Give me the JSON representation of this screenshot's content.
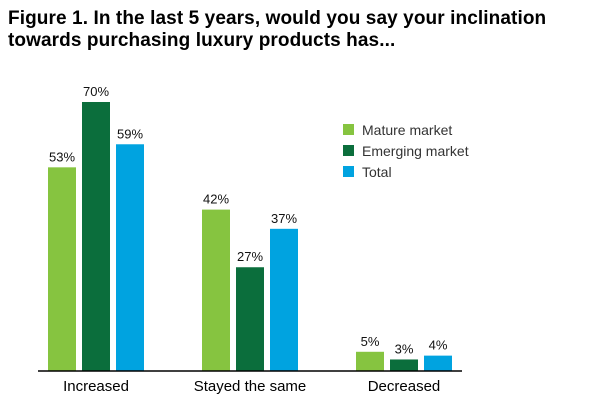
{
  "chart_data": {
    "type": "bar",
    "title": "Figure 1. In the last 5 years, would you say your inclination towards purchasing luxury products has...",
    "categories": [
      "Increased",
      "Stayed the same",
      "Decreased"
    ],
    "series": [
      {
        "name": "Mature market",
        "values": [
          53,
          42,
          5
        ],
        "color": "#86c440"
      },
      {
        "name": "Emerging market",
        "values": [
          70,
          27,
          3
        ],
        "color": "#0b6e3c"
      },
      {
        "name": "Total",
        "values": [
          59,
          37,
          4
        ],
        "color": "#00a3e0"
      }
    ],
    "value_suffix": "%",
    "ylim": [
      0,
      70
    ],
    "grid": false,
    "legend_position": "top-right",
    "xlabel": "",
    "ylabel": ""
  }
}
